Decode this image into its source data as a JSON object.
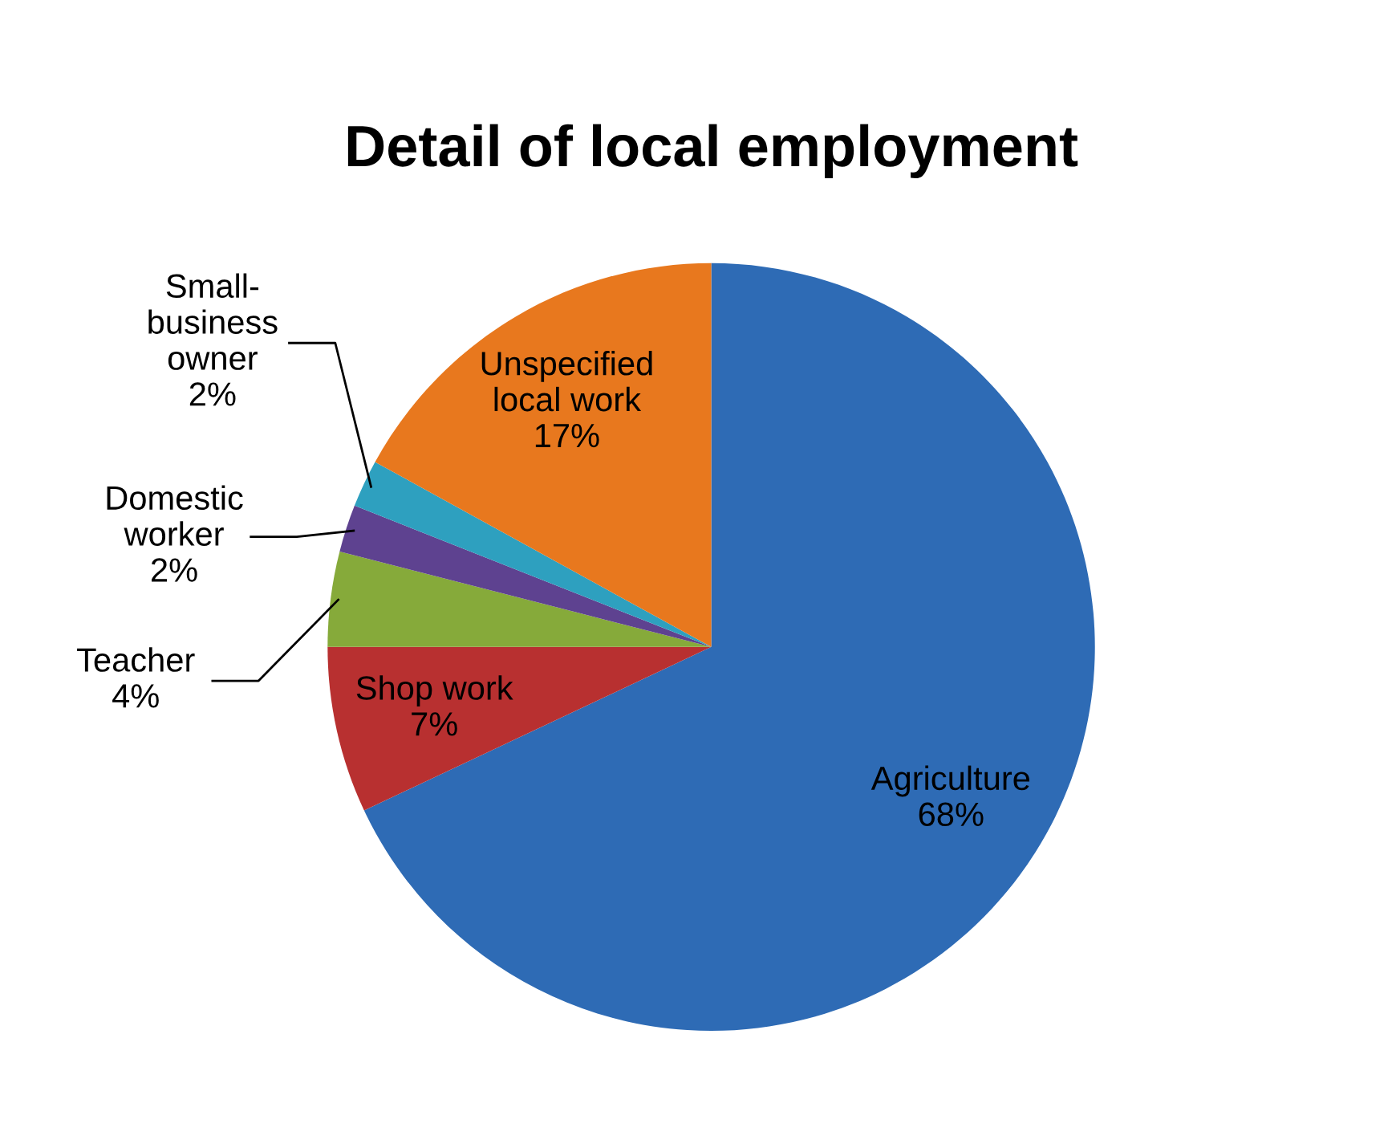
{
  "chart_data": {
    "type": "pie",
    "title": "Detail of local employment",
    "categories": [
      "Agriculture",
      "Shop work",
      "Teacher",
      "Domestic\nworker",
      "Small-\nbusiness\nowner",
      "Unspecified\nlocal work"
    ],
    "values": [
      68,
      7,
      4,
      2,
      2,
      17
    ],
    "colors": [
      "#2e6bb5",
      "#b83030",
      "#86aa3a",
      "#5e4290",
      "#2ea0bf",
      "#e8781e"
    ],
    "value_labels": [
      "68%",
      "7%",
      "4%",
      "2%",
      "2%",
      "17%"
    ]
  }
}
